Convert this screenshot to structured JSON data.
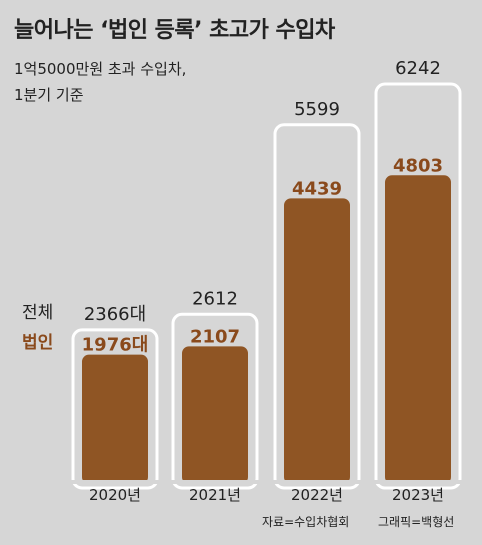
{
  "header": {
    "title": "늘어나는 ‘법인 등록’ 초고가 수입차",
    "subtitle": "1억5000만원 초과 수입차,\n1분기 기준"
  },
  "legend": {
    "total_label": "전체",
    "corp_label": "법인"
  },
  "footer": {
    "source": "자료=수입차협회",
    "graphic": "그래픽=백형선"
  },
  "colors": {
    "background": "#d6d6d6",
    "corp_bar": "#8f5524",
    "corp_value": "#8a4a1c",
    "total_outline": "#ffffff",
    "corp_value_2023": "#f4c4a0",
    "text": "#222222"
  },
  "chart_data": {
    "type": "bar",
    "categories": [
      "2020년",
      "2021년",
      "2022년",
      "2023년"
    ],
    "series": [
      {
        "name": "전체",
        "values": [
          2366,
          2612,
          5599,
          6242
        ],
        "labels": [
          "2366대",
          "2612",
          "5599",
          "6242"
        ]
      },
      {
        "name": "법인",
        "values": [
          1976,
          2107,
          4439,
          4803
        ],
        "labels": [
          "1976대",
          "2107",
          "4439",
          "4803"
        ]
      }
    ],
    "ylim": [
      0,
      6600
    ],
    "grid": false,
    "legend": "left"
  }
}
